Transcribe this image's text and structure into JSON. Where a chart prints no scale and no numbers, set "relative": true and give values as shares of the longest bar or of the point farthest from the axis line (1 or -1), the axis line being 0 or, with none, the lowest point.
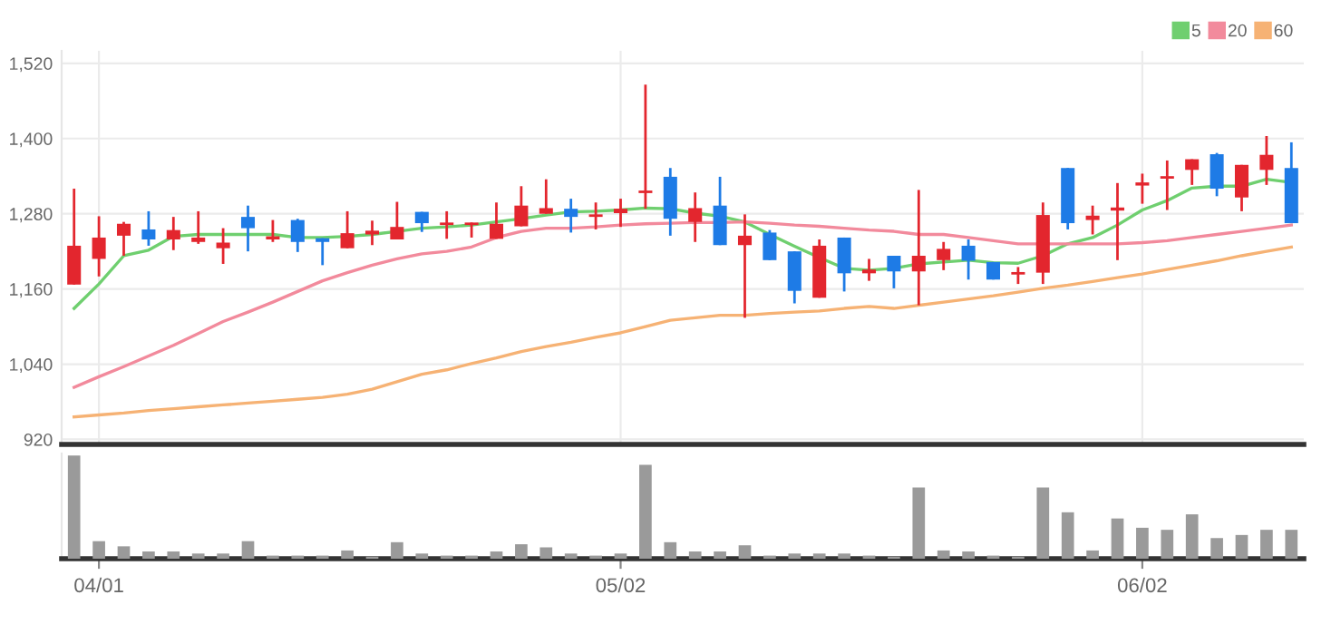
{
  "chart_data": [
    {
      "type": "candlestick",
      "categories": [
        null,
        null,
        null,
        null,
        null,
        null,
        null,
        null,
        null,
        null,
        null,
        null,
        null,
        null,
        null,
        null,
        null,
        null,
        null,
        null,
        null,
        null,
        null,
        null,
        null,
        null,
        null,
        null,
        null,
        null,
        null,
        null,
        null,
        null,
        null,
        null,
        null,
        null,
        null,
        null,
        null,
        null,
        null,
        null,
        null,
        null,
        null,
        null,
        null,
        null
      ],
      "ohlc": [
        [
          1167,
          1320,
          1167,
          1229
        ],
        [
          1208,
          1276,
          1180,
          1242
        ],
        [
          1245,
          1267,
          1213,
          1264
        ],
        [
          1255,
          1284,
          1229,
          1239
        ],
        [
          1239,
          1275,
          1222,
          1254
        ],
        [
          1235,
          1284,
          1232,
          1242
        ],
        [
          1225,
          1257,
          1200,
          1234
        ],
        [
          1275,
          1293,
          1220,
          1257
        ],
        [
          1239,
          1270,
          1235,
          1244
        ],
        [
          1270,
          1272,
          1219,
          1235
        ],
        [
          1241,
          1241,
          1198,
          1235
        ],
        [
          1225,
          1284,
          1225,
          1249
        ],
        [
          1247,
          1269,
          1230,
          1253
        ],
        [
          1239,
          1299,
          1239,
          1259
        ],
        [
          1283,
          1283,
          1251,
          1265
        ],
        [
          1262,
          1284,
          1240,
          1266
        ],
        [
          1262,
          1266,
          1242,
          1266
        ],
        [
          1240,
          1298,
          1240,
          1264
        ],
        [
          1260,
          1324,
          1260,
          1293
        ],
        [
          1280,
          1335,
          1280,
          1289
        ],
        [
          1288,
          1304,
          1250,
          1275
        ],
        [
          1275,
          1298,
          1255,
          1279
        ],
        [
          1281,
          1304,
          1259,
          1288
        ],
        [
          1313,
          1486,
          1288,
          1317
        ],
        [
          1339,
          1353,
          1245,
          1272
        ],
        [
          1267,
          1314,
          1235,
          1289
        ],
        [
          1293,
          1339,
          1230,
          1230
        ],
        [
          1230,
          1279,
          1114,
          1245
        ],
        [
          1250,
          1254,
          1206,
          1206
        ],
        [
          1220,
          1220,
          1137,
          1157
        ],
        [
          1146,
          1239,
          1146,
          1229
        ],
        [
          1242,
          1242,
          1156,
          1185
        ],
        [
          1185,
          1208,
          1173,
          1191
        ],
        [
          1213,
          1213,
          1161,
          1188
        ],
        [
          1188,
          1318,
          1134,
          1213
        ],
        [
          1206,
          1235,
          1190,
          1224
        ],
        [
          1229,
          1239,
          1175,
          1205
        ],
        [
          1203,
          1203,
          1175,
          1175
        ],
        [
          1183,
          1195,
          1168,
          1187
        ],
        [
          1186,
          1298,
          1168,
          1278
        ],
        [
          1353,
          1353,
          1255,
          1265
        ],
        [
          1270,
          1293,
          1247,
          1277
        ],
        [
          1285,
          1329,
          1206,
          1290
        ],
        [
          1325,
          1344,
          1296,
          1330
        ],
        [
          1336,
          1365,
          1286,
          1340
        ],
        [
          1350,
          1367,
          1326,
          1367
        ],
        [
          1375,
          1377,
          1308,
          1320
        ],
        [
          1306,
          1358,
          1284,
          1358
        ],
        [
          1350,
          1404,
          1326,
          1374
        ],
        [
          1353,
          1394,
          1265,
          1265
        ]
      ],
      "colors": [
        "#e3262e",
        "#e3262e",
        "#e3262e",
        "#1e7be6",
        "#e3262e",
        "#e3262e",
        "#e3262e",
        "#1e7be6",
        "#e3262e",
        "#1e7be6",
        "#1e7be6",
        "#e3262e",
        "#e3262e",
        "#e3262e",
        "#1e7be6",
        "#e3262e",
        "#e3262e",
        "#e3262e",
        "#e3262e",
        "#e3262e",
        "#1e7be6",
        "#e3262e",
        "#e3262e",
        "#e3262e",
        "#1e7be6",
        "#e3262e",
        "#1e7be6",
        "#e3262e",
        "#1e7be6",
        "#1e7be6",
        "#e3262e",
        "#1e7be6",
        "#e3262e",
        "#1e7be6",
        "#e3262e",
        "#e3262e",
        "#1e7be6",
        "#1e7be6",
        "#e3262e",
        "#e3262e",
        "#1e7be6",
        "#e3262e",
        "#e3262e",
        "#e3262e",
        "#e3262e",
        "#e3262e",
        "#1e7be6",
        "#e3262e",
        "#e3262e",
        "#1e7be6"
      ],
      "series": [
        {
          "name": "5",
          "type": "line",
          "color": "#6fcf6f",
          "values": [
            1129,
            1168,
            1213,
            1222,
            1244,
            1247,
            1247,
            1247,
            1247,
            1242,
            1242,
            1244,
            1247,
            1252,
            1257,
            1259,
            1262,
            1267,
            1272,
            1278,
            1283,
            1284,
            1286,
            1289,
            1288,
            1281,
            1276,
            1267,
            1247,
            1228,
            1210,
            1193,
            1190,
            1193,
            1200,
            1203,
            1206,
            1202,
            1201,
            1213,
            1232,
            1242,
            1262,
            1286,
            1301,
            1321,
            1324,
            1324,
            1335,
            1330
          ]
        },
        {
          "name": "20",
          "type": "line",
          "color": "#f28a9c",
          "values": [
            1003,
            1020,
            1036,
            1053,
            1070,
            1089,
            1108,
            1123,
            1139,
            1156,
            1173,
            1186,
            1198,
            1208,
            1216,
            1220,
            1227,
            1242,
            1252,
            1257,
            1257,
            1259,
            1262,
            1264,
            1265,
            1266,
            1266,
            1267,
            1265,
            1262,
            1260,
            1257,
            1254,
            1252,
            1247,
            1247,
            1242,
            1237,
            1232,
            1232,
            1232,
            1232,
            1232,
            1234,
            1237,
            1242,
            1247,
            1252,
            1257,
            1262
          ]
        },
        {
          "name": "60",
          "type": "line",
          "color": "#f6b274",
          "values": [
            956,
            959,
            962,
            966,
            969,
            972,
            975,
            978,
            981,
            984,
            987,
            992,
            1000,
            1012,
            1024,
            1031,
            1041,
            1050,
            1060,
            1068,
            1075,
            1083,
            1090,
            1100,
            1110,
            1114,
            1118,
            1118,
            1121,
            1123,
            1125,
            1129,
            1132,
            1129,
            1134,
            1139,
            1144,
            1149,
            1155,
            1161,
            1166,
            1172,
            1178,
            1184,
            1191,
            1198,
            1205,
            1213,
            1220,
            1227
          ]
        }
      ],
      "ylim": [
        912,
        1540
      ],
      "yticks": [
        {
          "value": 920,
          "label": "920"
        },
        {
          "value": 1040,
          "label": "1,040"
        },
        {
          "value": 1160,
          "label": "1,160"
        },
        {
          "value": 1280,
          "label": "1,280"
        },
        {
          "value": 1400,
          "label": "1,400"
        },
        {
          "value": 1520,
          "label": "1,520"
        }
      ],
      "grid": true,
      "legend": "top right",
      "tick_labels": "y"
    },
    {
      "type": "bar",
      "categories": [
        null,
        "04/01",
        null,
        null,
        null,
        null,
        null,
        null,
        null,
        null,
        null,
        null,
        null,
        null,
        null,
        null,
        null,
        null,
        null,
        null,
        null,
        null,
        "05/02",
        null,
        null,
        null,
        null,
        null,
        null,
        null,
        null,
        null,
        null,
        null,
        null,
        null,
        null,
        null,
        null,
        null,
        null,
        null,
        null,
        "06/02",
        null,
        null,
        null,
        null,
        null,
        null
      ],
      "values": [
        1,
        0.17,
        0.12,
        0.07,
        0.07,
        0.05,
        0.05,
        0.17,
        0.03,
        0.03,
        0.03,
        0.08,
        0.02,
        0.16,
        0.05,
        0.03,
        0.03,
        0.07,
        0.14,
        0.11,
        0.05,
        0.03,
        0.05,
        0.91,
        0.16,
        0.07,
        0.07,
        0.13,
        0.03,
        0.05,
        0.05,
        0.05,
        0.03,
        0.02,
        0.69,
        0.08,
        0.07,
        0.03,
        0.02,
        0.69,
        0.45,
        0.08,
        0.39,
        0.3,
        0.28,
        0.43,
        0.2,
        0.23,
        0.28,
        0.28
      ],
      "color": "#9a9a9a",
      "relative": true,
      "tick_labels": "x"
    }
  ]
}
